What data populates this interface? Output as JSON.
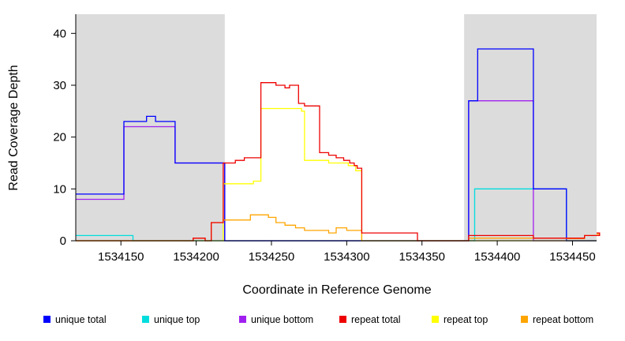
{
  "chart_data": {
    "type": "line",
    "subtype": "step-coverage",
    "title": "",
    "xlabel": "Coordinate in Reference Genome",
    "ylabel": "Read Coverage Depth",
    "x_domain": [
      1534120,
      1534466
    ],
    "y_domain": [
      0,
      43.7
    ],
    "x_ticks": [
      1534150,
      1534200,
      1534250,
      1534300,
      1534350,
      1534400,
      1534450
    ],
    "y_ticks": [
      0,
      10,
      20,
      30,
      40
    ],
    "grid": false,
    "shaded_regions": {
      "color": "#DCDCDC",
      "ranges": [
        [
          1534120,
          1534219
        ],
        [
          1534378,
          1534466
        ]
      ]
    },
    "series": [
      {
        "id": "unique-top",
        "name": "unique top",
        "color": "#00DDDD",
        "points": [
          [
            1534120,
            1
          ],
          [
            1534158,
            0
          ],
          [
            1534385,
            10
          ],
          [
            1534446,
            0
          ]
        ]
      },
      {
        "id": "unique-bottom",
        "name": "unique bottom",
        "color": "#A020F0",
        "points": [
          [
            1534120,
            8
          ],
          [
            1534152,
            22
          ],
          [
            1534186,
            15
          ],
          [
            1534219,
            0
          ],
          [
            1534381,
            27
          ],
          [
            1534424,
            0
          ]
        ]
      },
      {
        "id": "unique-total",
        "name": "unique total",
        "color": "#0000FF",
        "points": [
          [
            1534120,
            9
          ],
          [
            1534152,
            23
          ],
          [
            1534167,
            24
          ],
          [
            1534173,
            23
          ],
          [
            1534186,
            15
          ],
          [
            1534219,
            0
          ],
          [
            1534381,
            27
          ],
          [
            1534387,
            37
          ],
          [
            1534424,
            10
          ],
          [
            1534446,
            0
          ]
        ]
      },
      {
        "id": "repeat-top",
        "name": "repeat top",
        "color": "#FFFF00",
        "points": [
          [
            1534120,
            0
          ],
          [
            1534218,
            11
          ],
          [
            1534238,
            11.5
          ],
          [
            1534243,
            25.5
          ],
          [
            1534270,
            25
          ],
          [
            1534272,
            15.5
          ],
          [
            1534288,
            15
          ],
          [
            1534301,
            14.5
          ],
          [
            1534306,
            13.5
          ],
          [
            1534310,
            0
          ]
        ]
      },
      {
        "id": "repeat-bottom",
        "name": "repeat bottom",
        "color": "#FFA500",
        "points": [
          [
            1534120,
            0
          ],
          [
            1534198,
            0.5
          ],
          [
            1534206,
            0
          ],
          [
            1534210,
            3.5
          ],
          [
            1534218,
            4
          ],
          [
            1534236,
            5
          ],
          [
            1534248,
            4.5
          ],
          [
            1534253,
            3.5
          ],
          [
            1534259,
            3
          ],
          [
            1534266,
            2.5
          ],
          [
            1534272,
            2
          ],
          [
            1534288,
            1.5
          ],
          [
            1534293,
            2.5
          ],
          [
            1534300,
            2
          ],
          [
            1534310,
            0
          ],
          [
            1534381,
            0.5
          ],
          [
            1534446,
            0.4
          ],
          [
            1534458,
            1
          ],
          [
            1534468,
            1.3
          ]
        ]
      },
      {
        "id": "repeat-total",
        "name": "repeat total",
        "color": "#EE0000",
        "points": [
          [
            1534120,
            0
          ],
          [
            1534198,
            0.5
          ],
          [
            1534206,
            0
          ],
          [
            1534210,
            3.5
          ],
          [
            1534218,
            15
          ],
          [
            1534226,
            15.5
          ],
          [
            1534232,
            16
          ],
          [
            1534243,
            30.5
          ],
          [
            1534253,
            30
          ],
          [
            1534259,
            29.5
          ],
          [
            1534262,
            30
          ],
          [
            1534268,
            26.5
          ],
          [
            1534272,
            26
          ],
          [
            1534282,
            17
          ],
          [
            1534288,
            16.5
          ],
          [
            1534293,
            16
          ],
          [
            1534298,
            15.5
          ],
          [
            1534302,
            15
          ],
          [
            1534305,
            14.5
          ],
          [
            1534307,
            14
          ],
          [
            1534310,
            1.5
          ],
          [
            1534347,
            0
          ],
          [
            1534381,
            1
          ],
          [
            1534424,
            0.5
          ],
          [
            1534458,
            1
          ],
          [
            1534468,
            1.5
          ]
        ]
      }
    ],
    "legend": {
      "position": "bottom",
      "items": [
        {
          "label": "unique total",
          "color": "#0000FF"
        },
        {
          "label": "unique top",
          "color": "#00DDDD"
        },
        {
          "label": "unique bottom",
          "color": "#A020F0"
        },
        {
          "label": "repeat total",
          "color": "#EE0000"
        },
        {
          "label": "repeat top",
          "color": "#FFFF00"
        },
        {
          "label": "repeat bottom",
          "color": "#FFA500"
        }
      ]
    }
  }
}
